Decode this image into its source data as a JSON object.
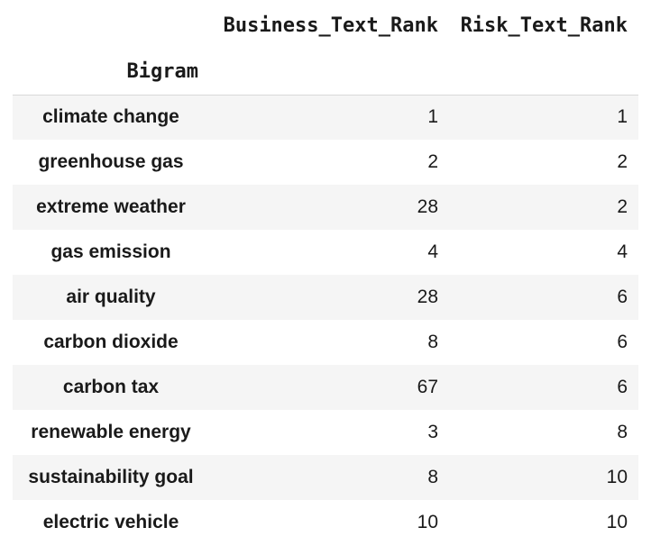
{
  "table": {
    "columns": [
      "Business_Text_Rank",
      "Risk_Text_Rank"
    ],
    "index_name": "Bigram",
    "rows": [
      {
        "bigram": "climate change",
        "business_text_rank": "1",
        "risk_text_rank": "1"
      },
      {
        "bigram": "greenhouse gas",
        "business_text_rank": "2",
        "risk_text_rank": "2"
      },
      {
        "bigram": "extreme weather",
        "business_text_rank": "28",
        "risk_text_rank": "2"
      },
      {
        "bigram": "gas emission",
        "business_text_rank": "4",
        "risk_text_rank": "4"
      },
      {
        "bigram": "air quality",
        "business_text_rank": "28",
        "risk_text_rank": "6"
      },
      {
        "bigram": "carbon dioxide",
        "business_text_rank": "8",
        "risk_text_rank": "6"
      },
      {
        "bigram": "carbon tax",
        "business_text_rank": "67",
        "risk_text_rank": "6"
      },
      {
        "bigram": "renewable energy",
        "business_text_rank": "3",
        "risk_text_rank": "8"
      },
      {
        "bigram": "sustainability goal",
        "business_text_rank": "8",
        "risk_text_rank": "10"
      },
      {
        "bigram": "electric vehicle",
        "business_text_rank": "10",
        "risk_text_rank": "10"
      }
    ]
  }
}
